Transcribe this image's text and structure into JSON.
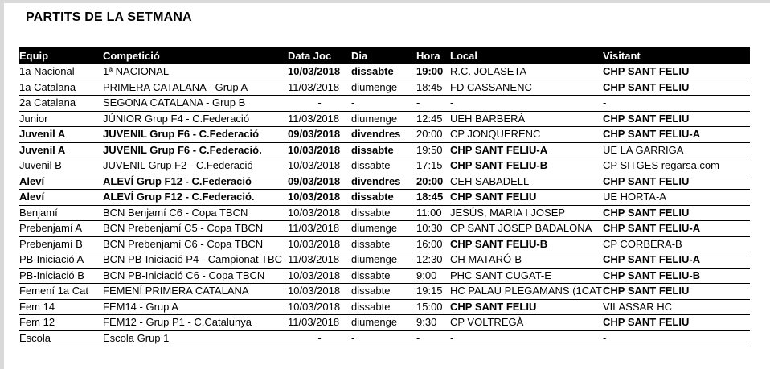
{
  "page": {
    "title": "PARTITS DE LA SETMANA"
  },
  "colors": {
    "header_bg": "#000000",
    "header_text": "#ffffff",
    "highlight_red": "#f81307",
    "page_border": "#d9d9d9"
  },
  "table": {
    "columns": [
      {
        "key": "equip",
        "label": "Equip"
      },
      {
        "key": "competicio",
        "label": "Competició"
      },
      {
        "key": "data_joc",
        "label": "Data Joc"
      },
      {
        "key": "dia",
        "label": "Dia"
      },
      {
        "key": "hora",
        "label": "Hora"
      },
      {
        "key": "local",
        "label": "Local"
      },
      {
        "key": "visitant",
        "label": "Visitant"
      }
    ],
    "rows": [
      {
        "equip": "1a Nacional",
        "competicio": "1ª NACIONAL",
        "data_joc": "10/03/2018",
        "dia": "dissabte",
        "hora": "19:00",
        "local": "R.C. JOLASETA",
        "visitant": "CHP SANT FELIU",
        "bold": [
          "data_joc",
          "dia",
          "hora",
          "visitant"
        ],
        "red": [
          "visitant"
        ]
      },
      {
        "equip": "1a Catalana",
        "competicio": "PRIMERA CATALANA - Grup A",
        "data_joc": "11/03/2018",
        "dia": "diumenge",
        "hora": "18:45",
        "local": "FD CASSANENC",
        "visitant": "CHP SANT FELIU",
        "bold": [
          "visitant"
        ],
        "red": [
          "visitant"
        ]
      },
      {
        "equip": "2a Catalana",
        "competicio": "SEGONA CATALANA - Grup B",
        "data_joc": "-",
        "dia": "-",
        "hora": "-",
        "local": "-",
        "visitant": "-",
        "bold": [],
        "red": []
      },
      {
        "equip": "Junior",
        "competicio": "JÚNIOR Grup F4 - C.Federació",
        "data_joc": "11/03/2018",
        "dia": "diumenge",
        "hora": "12:45",
        "local": "UEH BARBERÀ",
        "visitant": "CHP SANT FELIU",
        "bold": [
          "visitant"
        ],
        "red": [
          "visitant"
        ]
      },
      {
        "equip": "Juvenil A",
        "competicio": "JUVENIL Grup F6 - C.Federació",
        "data_joc": "09/03/2018",
        "dia": "divendres",
        "hora": "20:00",
        "local": "CP JONQUERENC",
        "visitant": "CHP SANT FELIU-A",
        "bold": [
          "equip",
          "competicio",
          "data_joc",
          "dia",
          "visitant"
        ],
        "red": [
          "visitant"
        ]
      },
      {
        "equip": "Juvenil A",
        "competicio": "JUVENIL Grup F6 - C.Federació.",
        "data_joc": "10/03/2018",
        "dia": "dissabte",
        "hora": "19:50",
        "local": "CHP SANT FELIU-A",
        "visitant": "UE LA GARRIGA",
        "bold": [
          "equip",
          "competicio",
          "data_joc",
          "dia",
          "local"
        ],
        "red": [
          "local"
        ]
      },
      {
        "equip": "Juvenil B",
        "competicio": "JUVENIL Grup F2 - C.Federació",
        "data_joc": "10/03/2018",
        "dia": "dissabte",
        "hora": "17:15",
        "local": "CHP SANT FELIU-B",
        "visitant": "CP SITGES regarsa.com",
        "bold": [
          "local"
        ],
        "red": [
          "local"
        ]
      },
      {
        "equip": "Aleví",
        "competicio": "ALEVÍ Grup F12 - C.Federació",
        "data_joc": "09/03/2018",
        "dia": "divendres",
        "hora": "20:00",
        "local": "CEH SABADELL",
        "visitant": "CHP SANT FELIU",
        "bold": [
          "equip",
          "competicio",
          "data_joc",
          "dia",
          "hora",
          "visitant"
        ],
        "red": [
          "visitant"
        ]
      },
      {
        "equip": "Aleví",
        "competicio": "ALEVÍ Grup F12 - C.Federació.",
        "data_joc": "10/03/2018",
        "dia": "dissabte",
        "hora": "18:45",
        "local": "CHP SANT FELIU",
        "visitant": "UE HORTA-A",
        "bold": [
          "equip",
          "competicio",
          "data_joc",
          "dia",
          "hora",
          "local"
        ],
        "red": [
          "local"
        ]
      },
      {
        "equip": "Benjamí",
        "competicio": "BCN Benjamí C6 - Copa TBCN",
        "data_joc": "10/03/2018",
        "dia": "dissabte",
        "hora": "11:00",
        "local": "JESÚS, MARIA I JOSEP",
        "visitant": "CHP SANT FELIU",
        "bold": [
          "visitant"
        ],
        "red": [
          "visitant"
        ]
      },
      {
        "equip": "Prebenjamí A",
        "competicio": "BCN Prebenjamí C5 - Copa TBCN",
        "data_joc": "11/03/2018",
        "dia": "diumenge",
        "hora": "10:30",
        "local": "CP SANT JOSEP BADALONA",
        "visitant": "CHP SANT FELIU-A",
        "bold": [
          "visitant"
        ],
        "red": [
          "visitant"
        ]
      },
      {
        "equip": "Prebenjamí B",
        "competicio": "BCN Prebenjamí C6 - Copa TBCN",
        "data_joc": "10/03/2018",
        "dia": "dissabte",
        "hora": "16:00",
        "local": "CHP SANT FELIU-B",
        "visitant": "CP CORBERA-B",
        "bold": [
          "local"
        ],
        "red": [
          "local"
        ]
      },
      {
        "equip": "PB-Iniciació A",
        "competicio": "BCN PB-Iniciació P4 - Campionat TBC",
        "data_joc": "11/03/2018",
        "dia": "diumenge",
        "hora": "12:30",
        "local": "CH MATARÓ-B",
        "visitant": "CHP SANT FELIU-A",
        "bold": [
          "visitant"
        ],
        "red": [
          "visitant"
        ]
      },
      {
        "equip": "PB-Iniciació B",
        "competicio": "BCN PB-Iniciació C6 - Copa TBCN",
        "data_joc": "10/03/2018",
        "dia": "dissabte",
        "hora": "9:00",
        "local": "PHC SANT CUGAT-E",
        "visitant": "CHP SANT FELIU-B",
        "bold": [
          "visitant"
        ],
        "red": [
          "visitant"
        ]
      },
      {
        "equip": "Femení 1a Cat",
        "competicio": "FEMENÍ PRIMERA CATALANA",
        "data_joc": "10/03/2018",
        "dia": "dissabte",
        "hora": "19:15",
        "local": "HC PALAU PLEGAMANS (1CAT",
        "visitant": "CHP SANT FELIU",
        "bold": [
          "visitant"
        ],
        "red": [
          "visitant"
        ]
      },
      {
        "equip": "Fem 14",
        "competicio": "FEM14 - Grup A",
        "data_joc": "10/03/2018",
        "dia": "dissabte",
        "hora": "15:00",
        "local": "CHP SANT FELIU",
        "visitant": "VILASSAR HC",
        "bold": [
          "local"
        ],
        "red": [
          "local"
        ]
      },
      {
        "equip": "Fem 12",
        "competicio": "FEM12 - Grup P1 - C.Catalunya",
        "data_joc": "11/03/2018",
        "dia": "diumenge",
        "hora": "9:30",
        "local": "CP VOLTREGÀ",
        "visitant": "CHP SANT FELIU",
        "bold": [
          "visitant"
        ],
        "red": [
          "visitant"
        ]
      },
      {
        "equip": "Escola",
        "competicio": "Escola Grup 1",
        "data_joc": "-",
        "dia": "-",
        "hora": "-",
        "local": "-",
        "visitant": "-",
        "bold": [],
        "red": []
      }
    ]
  }
}
